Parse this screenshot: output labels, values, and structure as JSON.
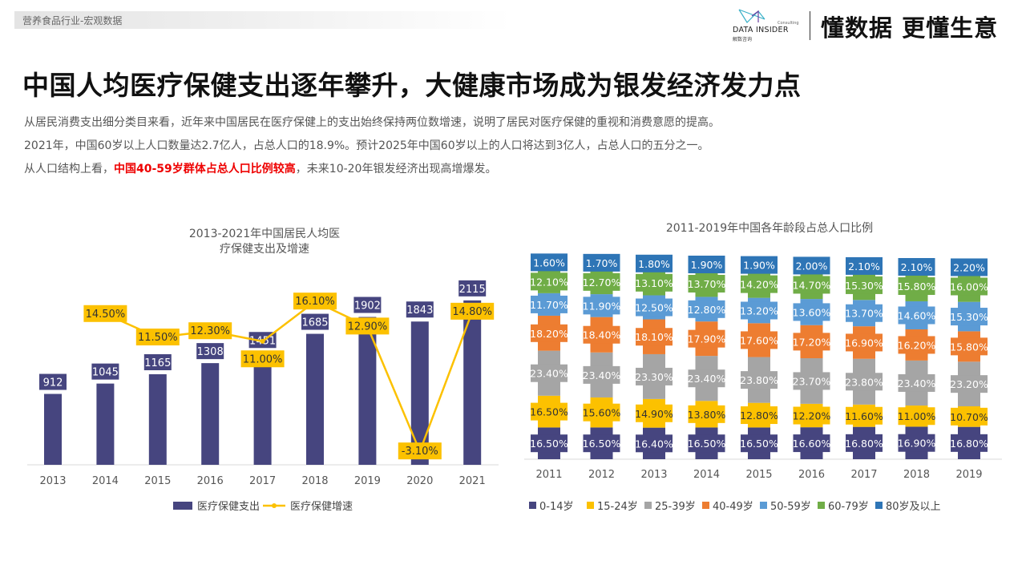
{
  "header": {
    "category": "营养食品行业-宏观数据",
    "logo_text": "DATA INSIDER",
    "logo_sub": "解数咨询",
    "logo_tag": "Consulting",
    "slogan": "懂数据 更懂生意"
  },
  "title": "中国人均医疗保健支出逐年攀升，大健康市场成为银发经济发力点",
  "paragraphs": {
    "p1": "从居民消费支出细分类目来看，近年来中国居民在医疗保健上的支出始终保持两位数增速，说明了居民对医疗保健的重视和消费意愿的提高。",
    "p2": "2021年，中国60岁以上人口数量达2.7亿人，占总人口的18.9%。预计2025年中国60岁以上的人口将达到3亿人，占总人口的五分之一。",
    "p3_a": "从人口结构上看，",
    "p3_red": "中国40-59岁群体占总人口比例较高",
    "p3_b": "，未来10-20年银发经济出现高增爆发。"
  },
  "chart_data": [
    {
      "type": "bar+line",
      "title": "2013-2021年中国居民人均医疗保健支出及增速",
      "categories": [
        "2013",
        "2014",
        "2015",
        "2016",
        "2017",
        "2018",
        "2019",
        "2020",
        "2021"
      ],
      "series": [
        {
          "name": "医疗保健支出",
          "type": "bar",
          "color": "#46457f",
          "values": [
            912,
            1045,
            1165,
            1308,
            1451,
            1685,
            1902,
            1843,
            2115
          ]
        },
        {
          "name": "医疗保健增速",
          "type": "line",
          "color": "#fcc100",
          "values": [
            null,
            14.5,
            11.5,
            12.3,
            11.0,
            16.1,
            12.9,
            -3.1,
            14.8
          ],
          "labels": [
            "",
            "14.50%",
            "11.50%",
            "12.30%",
            "11.00%",
            "16.10%",
            "12.90%",
            "-3.10%",
            "14.80%"
          ]
        }
      ],
      "legend": "bottom"
    },
    {
      "type": "stacked-bar",
      "title": "2011-2019年中国各年龄段占总人口比例",
      "categories": [
        "2011",
        "2012",
        "2013",
        "2014",
        "2015",
        "2016",
        "2017",
        "2018",
        "2019"
      ],
      "series": [
        {
          "name": "0-14岁",
          "color": "#46457f",
          "values": [
            16.5,
            16.5,
            16.4,
            16.5,
            16.5,
            16.6,
            16.8,
            16.9,
            16.8
          ]
        },
        {
          "name": "15-24岁",
          "color": "#fcc100",
          "values": [
            16.5,
            15.6,
            14.9,
            13.8,
            12.8,
            12.2,
            11.6,
            11.0,
            10.7
          ]
        },
        {
          "name": "25-39岁",
          "color": "#a5a5a5",
          "values": [
            23.4,
            23.4,
            23.3,
            23.4,
            23.8,
            23.7,
            23.8,
            23.4,
            23.2
          ]
        },
        {
          "name": "40-49岁",
          "color": "#ed7d31",
          "values": [
            18.2,
            18.4,
            18.1,
            17.9,
            17.6,
            17.2,
            16.9,
            16.2,
            15.8
          ]
        },
        {
          "name": "50-59岁",
          "color": "#5b9bd5",
          "values": [
            11.7,
            11.9,
            12.5,
            12.8,
            13.2,
            13.6,
            13.7,
            14.6,
            15.3
          ]
        },
        {
          "name": "60-79岁",
          "color": "#70ad47",
          "values": [
            12.1,
            12.7,
            13.1,
            13.7,
            14.2,
            14.7,
            15.3,
            15.8,
            16.0
          ]
        },
        {
          "name": "80岁及以上",
          "color": "#2e75b6",
          "values": [
            1.6,
            1.7,
            1.8,
            1.9,
            1.9,
            2.0,
            2.1,
            2.1,
            2.2
          ]
        }
      ],
      "value_format": "percent-2dp",
      "legend": "bottom"
    }
  ]
}
